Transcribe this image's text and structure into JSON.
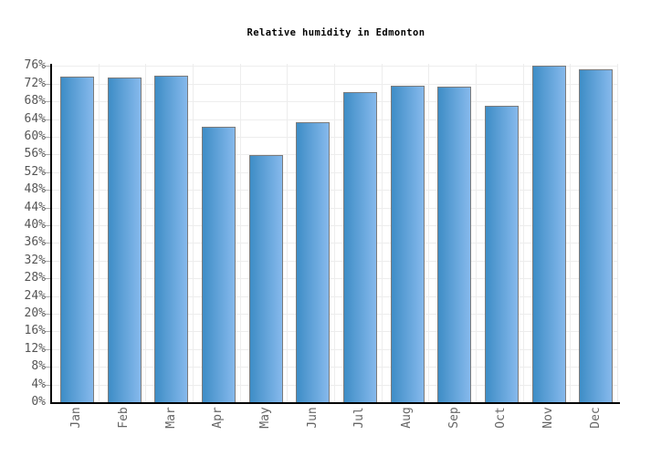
{
  "title": "Relative humidity in Edmonton",
  "chart_data": {
    "type": "bar",
    "title": "Relative humidity in Edmonton",
    "categories": [
      "Jan",
      "Feb",
      "Mar",
      "Apr",
      "May",
      "Jun",
      "Jul",
      "Aug",
      "Sep",
      "Oct",
      "Nov",
      "Dec"
    ],
    "values": [
      73.6,
      73.4,
      73.9,
      62.2,
      55.8,
      63.3,
      70.2,
      71.6,
      71.4,
      67.1,
      76.1,
      75.3
    ],
    "unit": "%",
    "xlabel": "",
    "ylabel": "",
    "ylim": [
      0,
      76.5
    ],
    "ytick_min": 0,
    "ytick_max": 76,
    "ytick_step": 4,
    "ytick_suffix": "%",
    "grid": true,
    "legend": "none",
    "colors": {
      "background": "#ffffff",
      "title_text": "#000000",
      "bar_gradient_left": "#3e8dc6",
      "bar_gradient_right": "#86b9ec",
      "bar_border": "#7b7b7b",
      "gridline": "#ededed",
      "axis": "#000000",
      "tick_mark": "#aaaaaa",
      "ytick_label": "#555555",
      "xtick_label": "#666666"
    }
  }
}
